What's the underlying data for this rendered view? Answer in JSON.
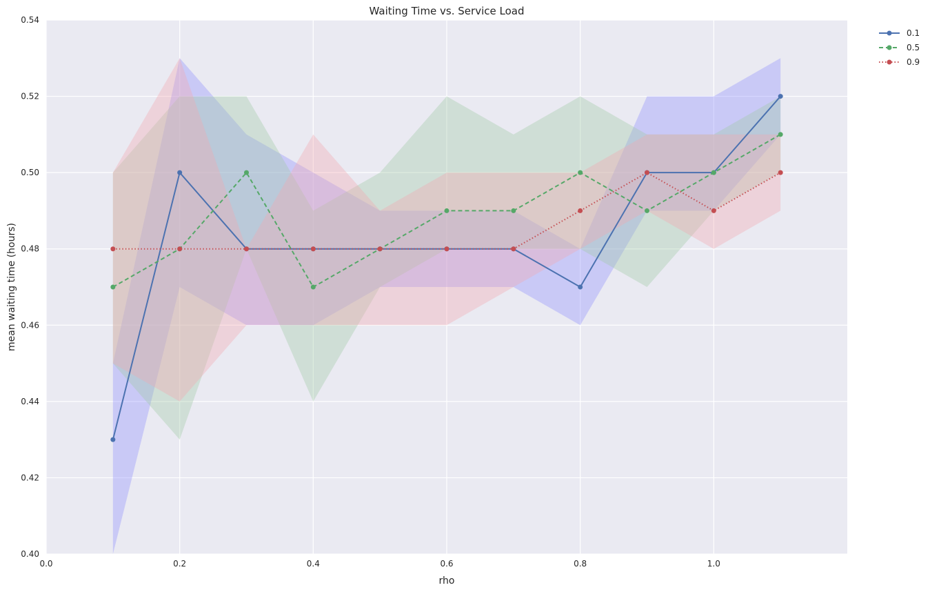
{
  "chart_data": {
    "type": "line",
    "title": "Waiting Time vs. Service Load",
    "xlabel": "rho",
    "ylabel": "mean waiting time (hours)",
    "xlim": [
      0.0,
      1.2
    ],
    "ylim": [
      0.4,
      0.54
    ],
    "xticks": [
      "0.0",
      "0.2",
      "0.4",
      "0.6",
      "0.8",
      "1.0"
    ],
    "yticks": [
      "0.40",
      "0.42",
      "0.44",
      "0.46",
      "0.48",
      "0.50",
      "0.52",
      "0.54"
    ],
    "grid": true,
    "legend_position": "outside top-right",
    "x": [
      0.1,
      0.2,
      0.3,
      0.4,
      0.5,
      0.6,
      0.7,
      0.8,
      0.9,
      1.0,
      1.1
    ],
    "series": [
      {
        "name": "0.1",
        "color": "#4c72b0",
        "band_color": "#8c8cff",
        "linestyle": "solid",
        "values": [
          0.43,
          0.5,
          0.48,
          0.48,
          0.48,
          0.48,
          0.48,
          0.47,
          0.5,
          0.5,
          0.52
        ],
        "lower": [
          0.4,
          0.47,
          0.46,
          0.46,
          0.47,
          0.47,
          0.47,
          0.46,
          0.49,
          0.49,
          0.51
        ],
        "upper": [
          0.45,
          0.53,
          0.51,
          0.5,
          0.49,
          0.49,
          0.49,
          0.48,
          0.52,
          0.52,
          0.53
        ]
      },
      {
        "name": "0.5",
        "color": "#55a868",
        "band_color": "#9dc9a4",
        "linestyle": "dashed",
        "values": [
          0.47,
          0.48,
          0.5,
          0.47,
          0.48,
          0.49,
          0.49,
          0.5,
          0.49,
          0.5,
          0.51
        ],
        "lower": [
          0.45,
          0.43,
          0.48,
          0.44,
          0.47,
          0.48,
          0.48,
          0.48,
          0.47,
          0.49,
          0.5
        ],
        "upper": [
          0.5,
          0.52,
          0.52,
          0.49,
          0.5,
          0.52,
          0.51,
          0.52,
          0.51,
          0.51,
          0.52
        ]
      },
      {
        "name": "0.9",
        "color": "#c44e52",
        "band_color": "#f3a6b0",
        "linestyle": "dotted",
        "values": [
          0.48,
          0.48,
          0.48,
          0.48,
          0.48,
          0.48,
          0.48,
          0.49,
          0.5,
          0.49,
          0.5
        ],
        "lower": [
          0.45,
          0.44,
          0.46,
          0.46,
          0.46,
          0.46,
          0.47,
          0.48,
          0.49,
          0.48,
          0.49
        ],
        "upper": [
          0.5,
          0.53,
          0.48,
          0.51,
          0.49,
          0.5,
          0.5,
          0.5,
          0.51,
          0.51,
          0.51
        ]
      }
    ]
  },
  "colors": {
    "plot_background": "#eaeaf2",
    "grid": "#ffffff"
  }
}
